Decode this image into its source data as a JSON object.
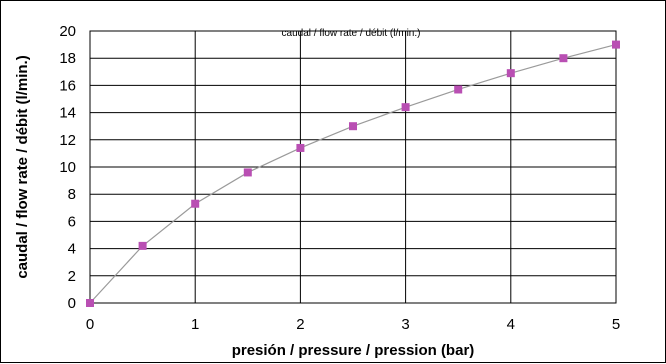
{
  "chart_data": {
    "type": "line",
    "title": "caudal / flow rate / débit (l/min.)",
    "xlabel": "presión / pressure / pression (bar)",
    "ylabel": "caudal / flow rate / débit (l/min.)",
    "xlim": [
      0,
      5
    ],
    "ylim": [
      0,
      20
    ],
    "x_ticks": [
      "0",
      "1",
      "2",
      "3",
      "4",
      "5"
    ],
    "y_ticks": [
      "0",
      "2",
      "4",
      "6",
      "8",
      "10",
      "12",
      "14",
      "16",
      "18",
      "20"
    ],
    "grid": true,
    "series": [
      {
        "x": [
          0,
          0.5,
          1,
          1.5,
          2,
          2.5,
          3,
          3.5,
          4,
          4.5,
          5
        ],
        "y": [
          0,
          4.2,
          7.3,
          9.6,
          11.4,
          13.0,
          14.4,
          15.7,
          16.9,
          18.0,
          19.0
        ],
        "marker": "square",
        "marker_color": "#b94fb3",
        "line_color": "#9a9a9a"
      }
    ]
  }
}
